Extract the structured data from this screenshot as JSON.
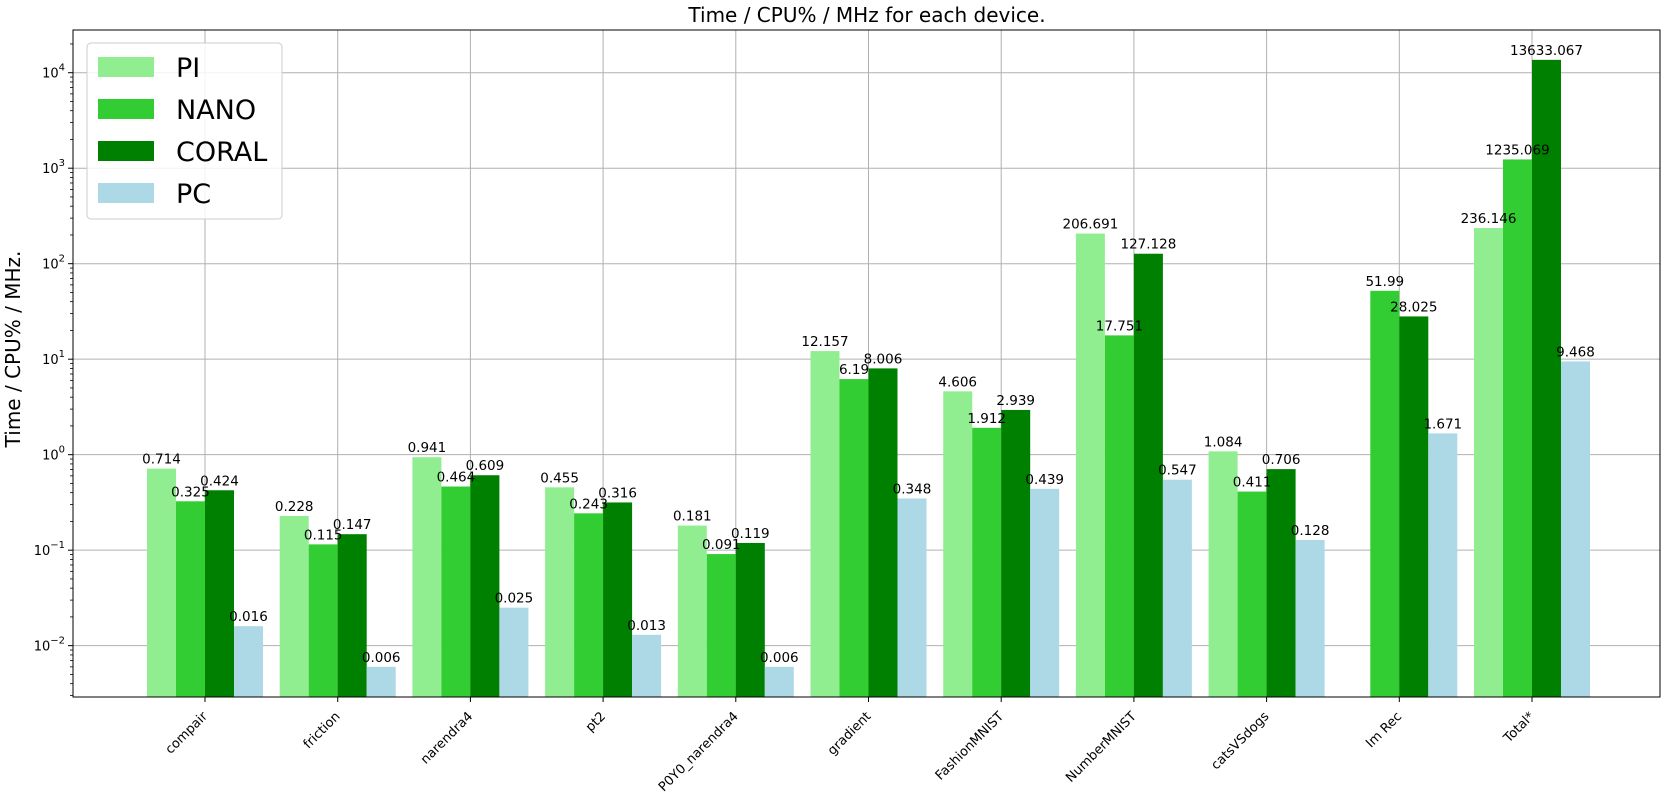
{
  "chart_data": {
    "type": "bar",
    "title": "Time / CPU% / MHz for each device.",
    "ylabel": "Time / CPU% / MHz.",
    "xlabel": "",
    "yscale": "log",
    "ylim": [
      0.0029,
      28000
    ],
    "grid": true,
    "legend_position": "top-left",
    "categories": [
      "compair",
      "friction",
      "narendra4",
      "pt2",
      "P0Y0_narendra4",
      "gradient",
      "FashionMNIST",
      "NumberMNIST",
      "catsVSdogs",
      "Im Rec",
      "Total*"
    ],
    "yticks": [
      {
        "value": 0.01,
        "base": "10",
        "exp": "−2"
      },
      {
        "value": 0.1,
        "base": "10",
        "exp": "−1"
      },
      {
        "value": 1,
        "base": "10",
        "exp": "0"
      },
      {
        "value": 10,
        "base": "10",
        "exp": "1"
      },
      {
        "value": 100,
        "base": "10",
        "exp": "2"
      },
      {
        "value": 1000,
        "base": "10",
        "exp": "3"
      },
      {
        "value": 10000,
        "base": "10",
        "exp": "4"
      }
    ],
    "series": [
      {
        "name": "PI",
        "color": "#90ee90",
        "values": [
          0.714,
          0.228,
          0.941,
          0.455,
          0.181,
          12.157,
          4.606,
          206.691,
          1.084,
          null,
          236.146
        ]
      },
      {
        "name": "NANO",
        "color": "#32cd32",
        "values": [
          0.325,
          0.115,
          0.464,
          0.243,
          0.091,
          6.19,
          1.912,
          17.751,
          0.411,
          51.99,
          1235.069
        ]
      },
      {
        "name": "CORAL",
        "color": "#008000",
        "values": [
          0.424,
          0.147,
          0.609,
          0.316,
          0.119,
          8.006,
          2.939,
          127.128,
          0.706,
          28.025,
          13633.067
        ]
      },
      {
        "name": "PC",
        "color": "#add8e6",
        "values": [
          0.016,
          0.006,
          0.025,
          0.013,
          0.006,
          0.348,
          0.439,
          0.547,
          0.128,
          1.671,
          9.468
        ]
      }
    ]
  }
}
